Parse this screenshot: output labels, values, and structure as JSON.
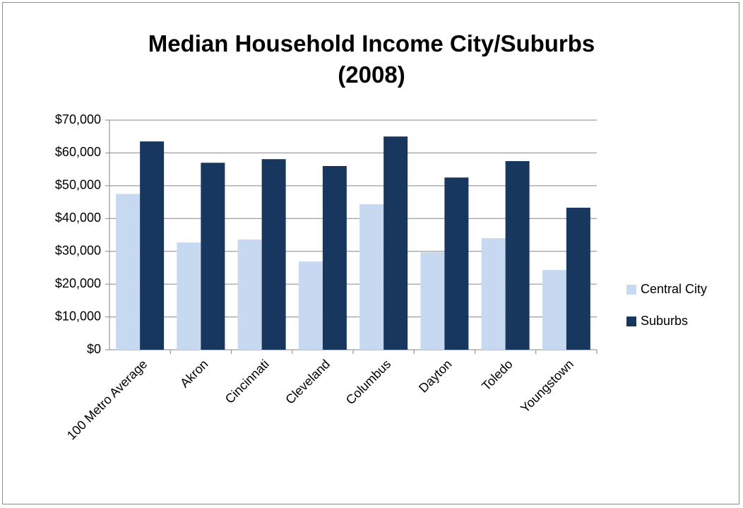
{
  "chart_data": {
    "type": "bar",
    "title": "Median Household Income City/Suburbs (2008)",
    "categories": [
      "100 Metro Average",
      "Akron",
      "Cincinnati",
      "Cleveland",
      "Columbus",
      "Dayton",
      "Toledo",
      "Youngstown"
    ],
    "series": [
      {
        "name": "Central City",
        "color": "#c6d9f1",
        "values": [
          47500,
          32700,
          33600,
          26900,
          44400,
          29700,
          34000,
          24300
        ]
      },
      {
        "name": "Suburbs",
        "color": "#17375e",
        "values": [
          63500,
          57000,
          58100,
          56000,
          65000,
          52500,
          57500,
          43300
        ]
      }
    ],
    "ylim": [
      0,
      70000
    ],
    "yticks": [
      {
        "value": 0,
        "label": "$0"
      },
      {
        "value": 10000,
        "label": "$10,000"
      },
      {
        "value": 20000,
        "label": "$20,000"
      },
      {
        "value": 30000,
        "label": "$30,000"
      },
      {
        "value": 40000,
        "label": "$40,000"
      },
      {
        "value": 50000,
        "label": "$50,000"
      },
      {
        "value": 60000,
        "label": "$60,000"
      },
      {
        "value": 70000,
        "label": "$70,000"
      }
    ],
    "grid": true,
    "legend": "right"
  }
}
